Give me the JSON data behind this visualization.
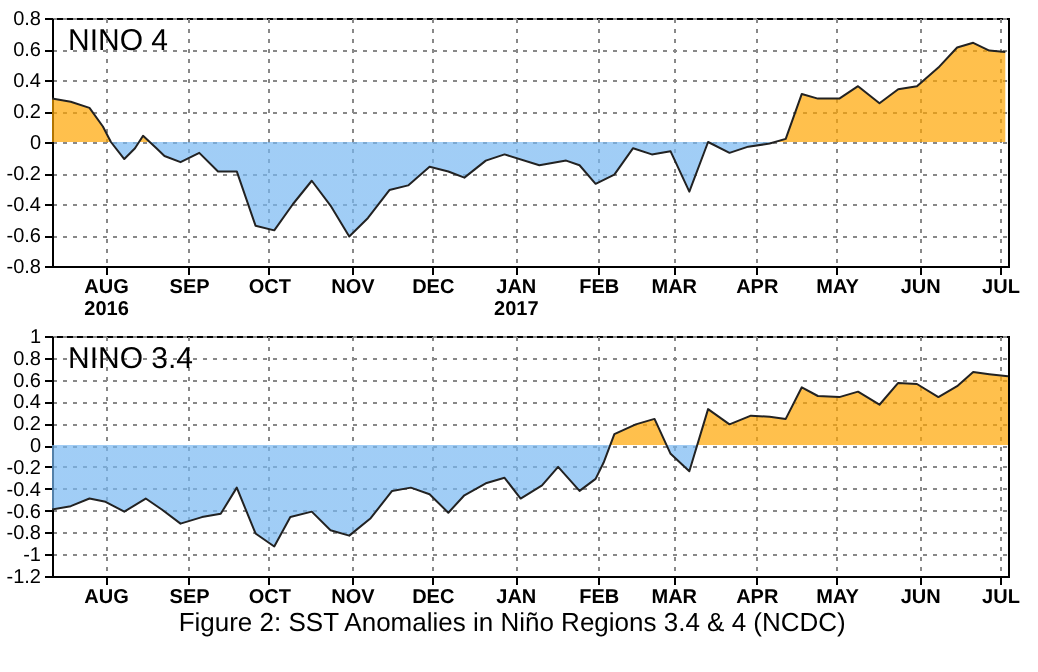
{
  "chart_data": [
    {
      "type": "area",
      "title": "NINO  4",
      "xlim": [
        "2016-07-12",
        "2017-07-04"
      ],
      "ylim": [
        -0.8,
        0.8
      ],
      "xticks": [
        {
          "value": "2016-08-01",
          "label": "AUG\n2016"
        },
        {
          "value": "2016-09-01",
          "label": "SEP"
        },
        {
          "value": "2016-10-01",
          "label": "OCT"
        },
        {
          "value": "2016-11-01",
          "label": "NOV"
        },
        {
          "value": "2016-12-01",
          "label": "DEC"
        },
        {
          "value": "2017-01-01",
          "label": "JAN\n2017"
        },
        {
          "value": "2017-02-01",
          "label": "FEB"
        },
        {
          "value": "2017-03-01",
          "label": "MAR"
        },
        {
          "value": "2017-04-01",
          "label": "APR"
        },
        {
          "value": "2017-05-01",
          "label": "MAY"
        },
        {
          "value": "2017-06-01",
          "label": "JUN"
        },
        {
          "value": "2017-07-01",
          "label": "JUL"
        }
      ],
      "yticks": [
        -0.8,
        -0.6,
        -0.4,
        -0.2,
        {
          "value": 0,
          "label": "0"
        },
        0.2,
        0.4,
        0.6,
        0.8
      ],
      "grid": true,
      "x": [
        "2016-07-12",
        "2016-07-19",
        "2016-07-26",
        "2016-07-31",
        "2016-08-03",
        "2016-08-08",
        "2016-08-12",
        "2016-08-15",
        "2016-08-20",
        "2016-08-23",
        "2016-08-29",
        "2016-09-05",
        "2016-09-12",
        "2016-09-19",
        "2016-09-26",
        "2016-10-03",
        "2016-10-10",
        "2016-10-17",
        "2016-10-24",
        "2016-10-31",
        "2016-11-07",
        "2016-11-15",
        "2016-11-22",
        "2016-11-30",
        "2016-12-07",
        "2016-12-13",
        "2016-12-21",
        "2016-12-28",
        "2017-01-10",
        "2017-01-20",
        "2017-01-25",
        "2017-01-31",
        "2017-02-07",
        "2017-02-14",
        "2017-02-21",
        "2017-02-28",
        "2017-03-07",
        "2017-03-14",
        "2017-03-22",
        "2017-03-29",
        "2017-04-06",
        "2017-04-12",
        "2017-04-18",
        "2017-04-24",
        "2017-05-02",
        "2017-05-09",
        "2017-05-17",
        "2017-05-24",
        "2017-05-31",
        "2017-06-08",
        "2017-06-15",
        "2017-06-21",
        "2017-06-27",
        "2017-07-03"
      ],
      "series": [
        {
          "colors": [
            "#ffa500",
            "#ffa500",
            "#ffa500",
            "#ffa500",
            "#ffa500",
            "#78b8f2",
            "#78b8f2",
            "#ffa500",
            "#78b8f2",
            "#78b8f2",
            "#78b8f2",
            "#78b8f2",
            "#78b8f2",
            "#78b8f2",
            "#78b8f2",
            "#78b8f2",
            "#78b8f2",
            "#78b8f2",
            "#78b8f2",
            "#78b8f2",
            "#78b8f2",
            "#78b8f2",
            "#78b8f2",
            "#78b8f2",
            "#78b8f2",
            "#78b8f2",
            "#78b8f2",
            "#78b8f2",
            "#78b8f2",
            "#78b8f2",
            "#78b8f2",
            "#78b8f2",
            "#78b8f2",
            "#78b8f2",
            "#78b8f2",
            "#78b8f2",
            "#78b8f2",
            "#ffa500",
            "#78b8f2",
            "#78b8f2",
            "#78b8f2",
            "#ffa500",
            "#ffa500",
            "#ffa500",
            "#ffa500",
            "#ffa500",
            "#ffa500",
            "#ffa500",
            "#ffa500",
            "#ffa500",
            "#ffa500",
            "#ffa500",
            "#ffa500",
            "#ffa500"
          ],
          "values": [
            0.28,
            0.26,
            0.22,
            0.1,
            0.0,
            -0.11,
            -0.04,
            0.04,
            -0.04,
            -0.09,
            -0.13,
            -0.07,
            -0.19,
            -0.19,
            -0.54,
            -0.57,
            -0.4,
            -0.25,
            -0.41,
            -0.61,
            -0.49,
            -0.31,
            -0.28,
            -0.16,
            -0.19,
            -0.23,
            -0.12,
            -0.08,
            -0.15,
            -0.12,
            -0.15,
            -0.27,
            -0.21,
            -0.04,
            -0.08,
            -0.06,
            -0.32,
            0.0,
            -0.07,
            -0.03,
            -0.01,
            0.02,
            0.31,
            0.28,
            0.28,
            0.36,
            0.25,
            0.34,
            0.36,
            0.48,
            0.61,
            0.64,
            0.59,
            0.58
          ]
        }
      ]
    },
    {
      "type": "area",
      "title": "NINO  3.4",
      "xlim": [
        "2016-07-12",
        "2017-07-04"
      ],
      "ylim": [
        -1.2,
        1
      ],
      "xticks": [
        {
          "value": "2016-08-01",
          "label": "AUG"
        },
        {
          "value": "2016-09-01",
          "label": "SEP"
        },
        {
          "value": "2016-10-01",
          "label": "OCT"
        },
        {
          "value": "2016-11-01",
          "label": "NOV"
        },
        {
          "value": "2016-12-01",
          "label": "DEC"
        },
        {
          "value": "2017-01-01",
          "label": "JAN"
        },
        {
          "value": "2017-02-01",
          "label": "FEB"
        },
        {
          "value": "2017-03-01",
          "label": "MAR"
        },
        {
          "value": "2017-04-01",
          "label": "APR"
        },
        {
          "value": "2017-05-01",
          "label": "MAY"
        },
        {
          "value": "2017-06-01",
          "label": "JUN"
        },
        {
          "value": "2017-07-01",
          "label": "JUL"
        }
      ],
      "yticks": [
        -1.2,
        -1,
        -0.8,
        -0.6,
        -0.4,
        -0.2,
        {
          "value": 0,
          "label": "0"
        },
        0.2,
        0.4,
        0.6,
        0.8,
        1
      ],
      "grid": true,
      "annotations": [
        "Figure 2: SST Anomalies in Niño Regions 3.4 & 4 (NCDC)"
      ],
      "x": [
        "2016-07-12",
        "2016-07-19",
        "2016-07-26",
        "2016-08-01",
        "2016-08-08",
        "2016-08-16",
        "2016-08-22",
        "2016-08-29",
        "2016-09-06",
        "2016-09-13",
        "2016-09-19",
        "2016-09-26",
        "2016-10-03",
        "2016-10-09",
        "2016-10-17",
        "2016-10-24",
        "2016-10-31",
        "2016-11-08",
        "2016-11-16",
        "2016-11-23",
        "2016-11-30",
        "2016-12-07",
        "2016-12-13",
        "2016-12-21",
        "2016-12-28",
        "2017-01-03",
        "2017-01-11",
        "2017-01-17",
        "2017-01-25",
        "2017-01-31",
        "2017-02-03",
        "2017-02-07",
        "2017-02-15",
        "2017-02-22",
        "2017-02-28",
        "2017-03-07",
        "2017-03-14",
        "2017-03-22",
        "2017-03-30",
        "2017-04-06",
        "2017-04-12",
        "2017-04-18",
        "2017-04-24",
        "2017-05-02",
        "2017-05-09",
        "2017-05-17",
        "2017-05-24",
        "2017-05-31",
        "2017-06-08",
        "2017-06-15",
        "2017-06-21",
        "2017-06-27",
        "2017-07-04"
      ],
      "series": [
        {
          "colors": [
            "#78b8f2",
            "#78b8f2",
            "#78b8f2",
            "#78b8f2",
            "#78b8f2",
            "#78b8f2",
            "#78b8f2",
            "#78b8f2",
            "#78b8f2",
            "#78b8f2",
            "#78b8f2",
            "#78b8f2",
            "#78b8f2",
            "#78b8f2",
            "#78b8f2",
            "#78b8f2",
            "#78b8f2",
            "#78b8f2",
            "#78b8f2",
            "#78b8f2",
            "#78b8f2",
            "#78b8f2",
            "#78b8f2",
            "#78b8f2",
            "#78b8f2",
            "#78b8f2",
            "#78b8f2",
            "#78b8f2",
            "#78b8f2",
            "#78b8f2",
            "#78b8f2",
            "#ffa500",
            "#ffa500",
            "#ffa500",
            "#78b8f2",
            "#78b8f2",
            "#ffa500",
            "#ffa500",
            "#ffa500",
            "#ffa500",
            "#ffa500",
            "#ffa500",
            "#ffa500",
            "#ffa500",
            "#ffa500",
            "#ffa500",
            "#ffa500",
            "#ffa500",
            "#ffa500",
            "#ffa500",
            "#ffa500",
            "#ffa500",
            "#ffa500"
          ],
          "values": [
            -0.59,
            -0.56,
            -0.49,
            -0.52,
            -0.61,
            -0.49,
            -0.59,
            -0.72,
            -0.66,
            -0.63,
            -0.39,
            -0.81,
            -0.93,
            -0.66,
            -0.61,
            -0.78,
            -0.83,
            -0.67,
            -0.42,
            -0.39,
            -0.45,
            -0.62,
            -0.46,
            -0.35,
            -0.3,
            -0.49,
            -0.37,
            -0.2,
            -0.42,
            -0.31,
            -0.16,
            0.1,
            0.19,
            0.24,
            -0.08,
            -0.24,
            0.33,
            0.19,
            0.27,
            0.26,
            0.24,
            0.53,
            0.45,
            0.44,
            0.49,
            0.37,
            0.57,
            0.56,
            0.44,
            0.54,
            0.67,
            0.65,
            0.63
          ]
        }
      ]
    }
  ]
}
